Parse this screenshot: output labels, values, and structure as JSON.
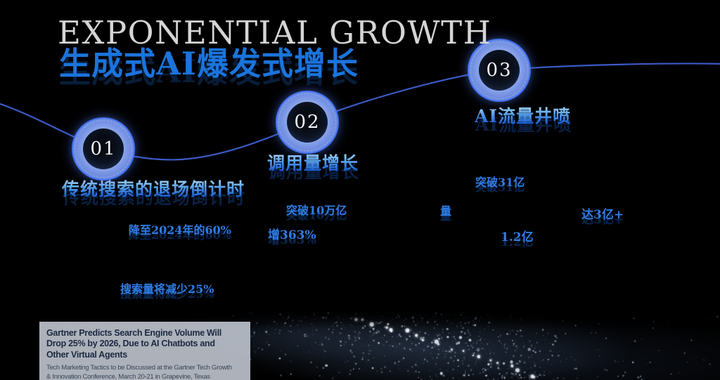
{
  "header": {
    "title": "EXPONENTIAL GROWTH",
    "subtitle": "生成式AI爆发式增长"
  },
  "milestones": [
    {
      "number": "01",
      "heading": "传统搜索的退场倒计时",
      "stat1": "降至2024年的60%",
      "stat2": "搜索量将减少25%"
    },
    {
      "number": "02",
      "heading": "调用量增长",
      "stat1": "突破10万亿",
      "stat2": "增363%"
    },
    {
      "number": "03",
      "heading": "AI流量井喷",
      "stat1": "突破31亿",
      "stat2": "达3亿+",
      "stat3": "1.2亿"
    }
  ],
  "stray_glyph": "量",
  "citation": {
    "headline": "Gartner Predicts Search Engine Volume Will\nDrop 25% by 2026, Due to AI Chatbots and\nOther Virtual Agents",
    "detail": "Tech Marketing Tactics to be Discussed at the Gartner Tech Growth\n& Innovation Conference, March 20-21 in Grapevine, Texas"
  },
  "colors": {
    "accent_blue": "#1b74dc",
    "stat_blue": "#2f7ce2",
    "circle_fill": "#6583de",
    "circle_rim": "#3f6ff5",
    "curve": "#4062d8",
    "title_gray": "#d5d5d5",
    "citation_bg": "#cacfd9",
    "citation_text": "#1c2940"
  }
}
